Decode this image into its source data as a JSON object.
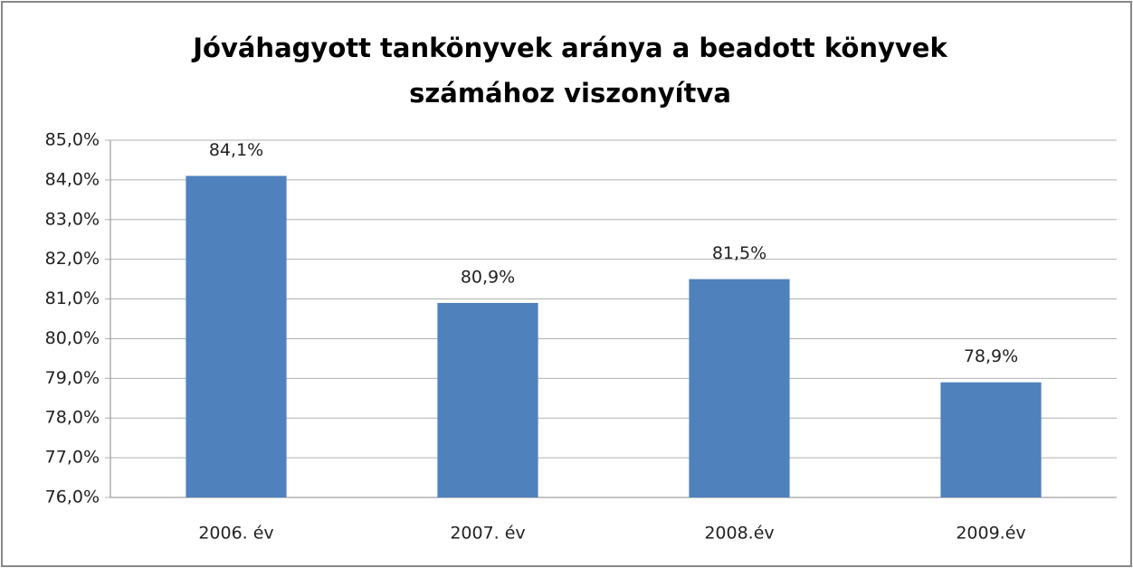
{
  "chart_data": {
    "type": "bar",
    "title": "Jóváhagyott tankönyvek aránya a beadott könyvek számához viszonyítva",
    "categories": [
      "2006. év",
      "2007. év",
      "2008.év",
      "2009.év"
    ],
    "values": [
      84.1,
      80.9,
      81.5,
      78.9
    ],
    "value_labels": [
      "84,1%",
      "80,9%",
      "81,5%",
      "78,9%"
    ],
    "color": "#4f81bd",
    "ylim": [
      76,
      85
    ],
    "yticks": [
      {
        "value": 76,
        "label": "76,0%"
      },
      {
        "value": 77,
        "label": "77,0%"
      },
      {
        "value": 78,
        "label": "78,0%"
      },
      {
        "value": 79,
        "label": "79,0%"
      },
      {
        "value": 80,
        "label": "80,0%"
      },
      {
        "value": 81,
        "label": "81,0%"
      },
      {
        "value": 82,
        "label": "82,0%"
      },
      {
        "value": 83,
        "label": "83,0%"
      },
      {
        "value": 84,
        "label": "84,0%"
      },
      {
        "value": 85,
        "label": "85,0%"
      }
    ],
    "grid": true
  }
}
